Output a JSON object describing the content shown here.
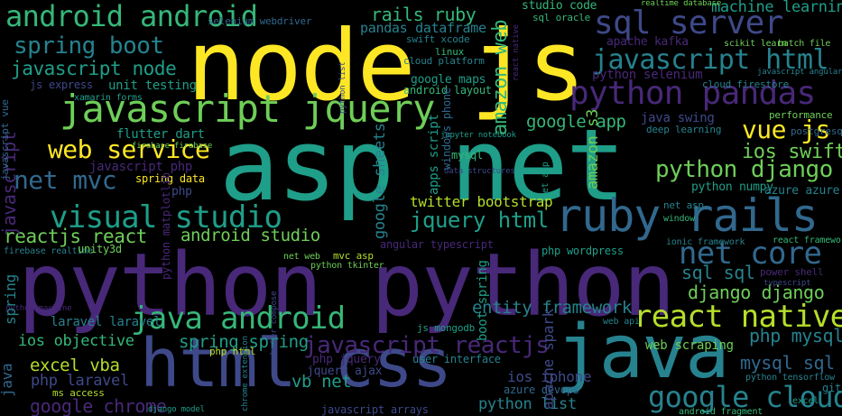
{
  "words": {
    "node_js": "node js",
    "asp_net": "asp net",
    "python_python": "python python",
    "html_css": "html css",
    "java": "java",
    "javascript_jquery": "javascript jquery",
    "visual_studio": "visual studio",
    "ruby_rails": "ruby rails",
    "python_pandas": "python pandas",
    "java_android": "java android",
    "sql_server": "sql server",
    "android_android": "android android",
    "javascript_html": "javascript html",
    "react_native": "react native",
    "spring_boot": "spring boot",
    "web_service": "web service",
    "google_cloud": "google cloud",
    "net_mvc": "net mvc",
    "python_django": "python django",
    "net_core": "net core",
    "vue_js": "vue js",
    "ios_swift": "ios swift",
    "javascript_node": "javascript node",
    "rails_ruby": "rails ruby",
    "jquery_html": "jquery html",
    "javascript_reactjs": "javascript reactjs",
    "entity_framework": "entity framework",
    "reactjs_react": "reactjs react",
    "android_studio": "android studio",
    "twitter_bootstrap": "twitter bootstrap",
    "sql_sql": "sql sql",
    "django_django": "django django",
    "excel_vba": "excel vba",
    "google_chrome": "google chrome",
    "pandas_dataframe": "pandas dataframe",
    "spring_spring": "spring spring",
    "laravel_laravel": "laravel laravel",
    "ios_objective": "ios objective",
    "php_laravel": "php laravel",
    "python_list": "python list",
    "google_app": "google app",
    "amazon_web": "amazon web",
    "amazon_s3": "amazon s3",
    "vb_net": "vb net",
    "php_mysql": "php mysql",
    "mysql_sql": "mysql sql",
    "ios_iphone": "ios iphone",
    "web_scraping": "web scraping",
    "java_swing": "java swing",
    "machine_learning": "machine learning",
    "sql_oracle": "sql oracle",
    "studio_code": "studio code",
    "python_selenium": "python selenium",
    "apache_kafka": "apache kafka",
    "flutter_dart": "flutter dart",
    "unit_testing": "unit testing",
    "js_express": "js express",
    "javascript_php": "javascript php",
    "spring_data": "spring data",
    "python_numpy": "python numpy",
    "azure_azure": "azure azure",
    "google_maps": "google maps",
    "android_layout": "android layout",
    "deep_learning": "deep learning",
    "cloud_firestore": "cloud firestore",
    "angular_typescript": "angular typescript",
    "php_wordpress": "php wordpress",
    "jquery_ajax": "jquery ajax",
    "php_jquery": "php jquery",
    "user_interface": "user interface",
    "azure_devops": "azure devops",
    "javascript_arrays": "javascript arrays",
    "python_tensorflow": "python tensorflow",
    "android_fragment": "android fragment",
    "firebase_realtime": "firebase realtime",
    "unity3d": "unity3d",
    "selenium_webdriver": "selenium webdriver",
    "cloud_platform": "cloud platform",
    "swift_xcode": "swift xcode",
    "linux": "linux",
    "mysql": "mysql",
    "performance": "performance",
    "postgresql": "postgresql",
    "javascript": "javascript",
    "spring": "spring",
    "google_sheets": "google sheets",
    "apps_script": "apps script",
    "windows_phone": "windows phone",
    "boot_spring": "boot spring",
    "apache_spark": "apache spark",
    "mvc_asp": "mvc asp",
    "net_web": "net web",
    "php_html": "php html",
    "ms_access": "ms access",
    "scikit_learn": "scikit learn",
    "batch_file": "batch file",
    "react_framework": "react framework",
    "ionic_framework": "ionic framework",
    "power_shell": "power shell",
    "web_api": "web api",
    "js_mongodb": "js mongodb",
    "php": "php",
    "jupyter_notebook": "jupyter notebook",
    "javascript_vue": "javascript vue",
    "python_matplotlib": "python matplotlib",
    "firebase_firebase": "firebase firebase",
    "javascript_angular": "javascript angular",
    "docker_compose": "docker compose",
    "python_tkinter": "python tkinter",
    "window": "window",
    "net_asp": "net asp",
    "typescript": "typescript",
    "data_structures": "data structures",
    "python_machine": "python machine",
    "real_database": "realtime database",
    "xamarin_forms": "xamarin forms",
    "django_model": "django model",
    "chrome_extension": "chrome extension",
    "git": "git",
    "excel": "excel"
  }
}
